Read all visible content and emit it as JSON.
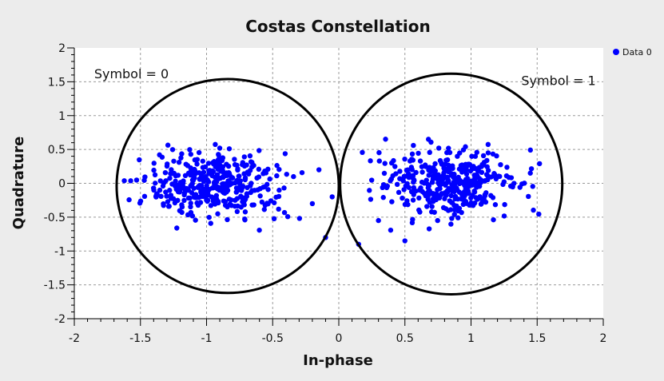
{
  "chart_data": {
    "type": "scatter",
    "title": "Costas Constellation",
    "xlabel": "In-phase",
    "ylabel": "Quadrature",
    "xlim": [
      -2,
      2
    ],
    "ylim": [
      -2,
      2
    ],
    "xticks": [
      "-2",
      "-1.5",
      "-1",
      "-0.5",
      "0",
      "0.5",
      "1",
      "1.5",
      "2"
    ],
    "yticks": [
      "-2",
      "-1.5",
      "-1",
      "-0.5",
      "0",
      "0.5",
      "1",
      "1.5",
      "2"
    ],
    "grid": true,
    "legend_position": "top-right",
    "series": [
      {
        "name": "Data 0",
        "color": "#0000ff",
        "clusters": [
          {
            "center": [
              -0.95,
              -0.02
            ],
            "spread": 0.24,
            "count": 380
          },
          {
            "center": [
              0.85,
              -0.02
            ],
            "spread": 0.24,
            "count": 380
          }
        ],
        "outliers": [
          [
            -0.15,
            0.2
          ],
          [
            -0.2,
            -0.3
          ],
          [
            -0.1,
            -0.8
          ],
          [
            -0.05,
            -0.2
          ],
          [
            0.15,
            -0.9
          ],
          [
            0.3,
            -0.55
          ],
          [
            0.4,
            0.3
          ],
          [
            0.5,
            -0.85
          ]
        ]
      }
    ],
    "annotations": [
      {
        "text": "Symbol = 0",
        "at": [
          -1.85,
          1.55
        ]
      },
      {
        "text": "Symbol = 1",
        "at": [
          1.38,
          1.45
        ]
      }
    ],
    "circles": [
      {
        "center": [
          -0.84,
          -0.04
        ],
        "rx": 0.84,
        "ry": 1.58
      },
      {
        "center": [
          0.85,
          -0.01
        ],
        "rx": 0.84,
        "ry": 1.63
      }
    ]
  }
}
